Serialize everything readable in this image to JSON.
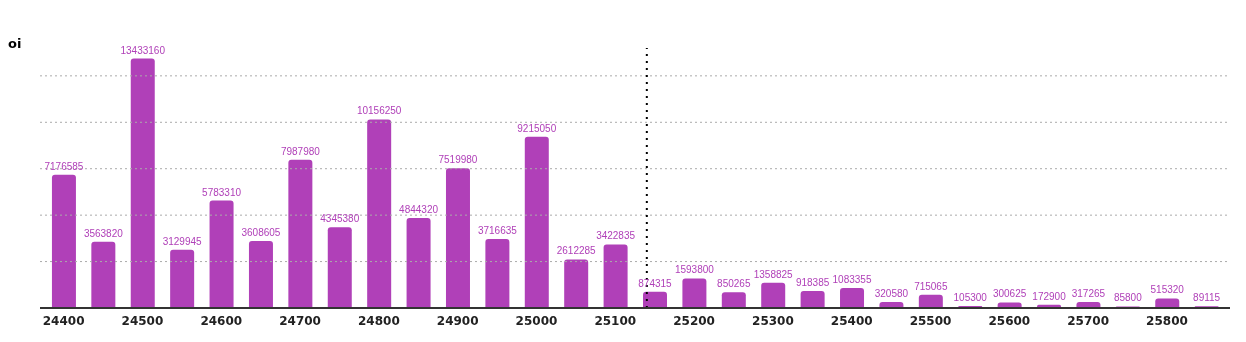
{
  "chart_data": {
    "type": "bar",
    "ylabel": "oi",
    "x": [
      24400,
      24450,
      24500,
      24550,
      24600,
      24650,
      24700,
      24750,
      24800,
      24850,
      24900,
      24950,
      25000,
      25050,
      25100,
      25150,
      25200,
      25250,
      25300,
      25350,
      25400,
      25450,
      25500,
      25550,
      25600,
      25650,
      25700,
      25750,
      25800,
      25850
    ],
    "values": [
      7176585,
      3563820,
      13433160,
      3129945,
      5783310,
      3608605,
      7987980,
      4345380,
      10156250,
      4844320,
      7519980,
      3716635,
      9215050,
      2612285,
      3422835,
      874315,
      1593800,
      850265,
      1358825,
      918385,
      1083355,
      320580,
      715065,
      105300,
      300625,
      172900,
      317265,
      85800,
      515320,
      89115
    ],
    "color": "#b040b8",
    "data_labels": true,
    "xlim": [
      24370,
      25880
    ],
    "xticks": [
      24400,
      24500,
      24600,
      24700,
      24800,
      24900,
      25000,
      25100,
      25200,
      25300,
      25400,
      25500,
      25600,
      25700,
      25800
    ],
    "ylim": [
      0,
      14000000
    ],
    "yticks": [
      {
        "value": 0,
        "label": null
      },
      {
        "value": 2500000,
        "label": null
      },
      {
        "value": 5000000,
        "label": null
      },
      {
        "value": 7500000,
        "label": null
      },
      {
        "value": 10000000,
        "label": null
      },
      {
        "value": 12500000,
        "label": null
      }
    ],
    "tick_labels": "x",
    "grid": "y",
    "ref_lines": [
      {
        "axis": "x",
        "value": 25140,
        "line_style": "dotted",
        "color": "#000000"
      }
    ]
  }
}
